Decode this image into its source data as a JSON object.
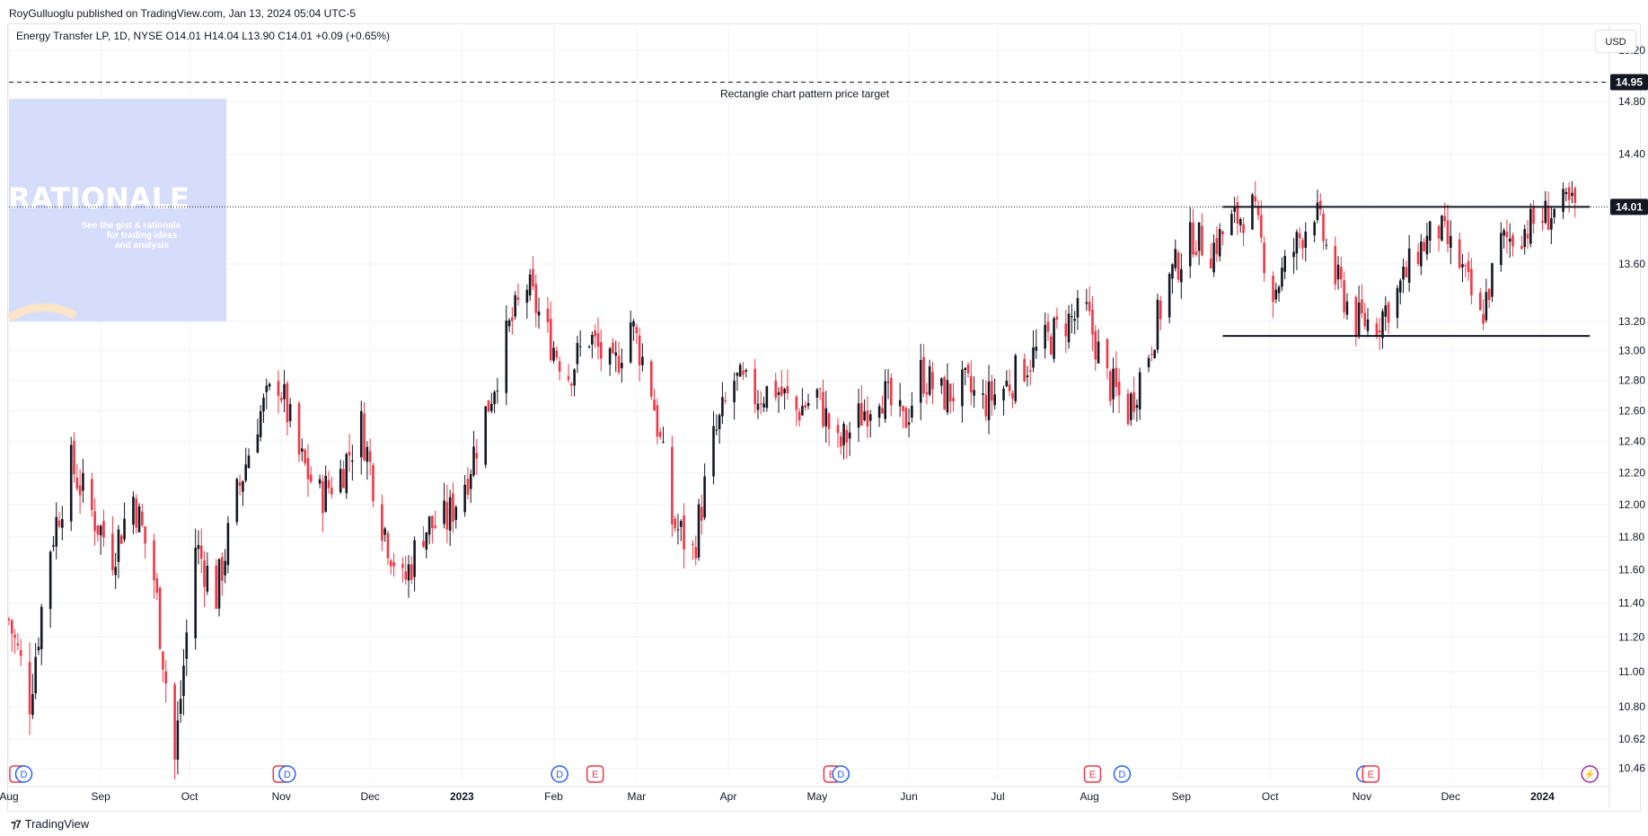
{
  "header": {
    "publish_note": "RoyGulluoglu published on TradingView.com, Jan 13, 2024 05:04 UTC-5",
    "legend": "Energy Transfer LP, 1D, NYSE  O14.01  H14.04  L13.90  C14.01  +0.09 (+0.65%)",
    "currency": "USD"
  },
  "footer": {
    "brand": "TradingView"
  },
  "overlay": {
    "title": "RATIONALE",
    "subtitle_lines": [
      "See the gist & rationale",
      "for trading ideas",
      "and analysis"
    ],
    "bg_color": "#d6ddfa"
  },
  "colors": {
    "up": "#131722",
    "down": "#f23645",
    "grid": "#f0f3fa",
    "price_tag": "#131722"
  },
  "chart_data": {
    "type": "candlestick",
    "symbol": "Energy Transfer LP",
    "interval": "1D",
    "exchange": "NYSE",
    "ohlc_last": {
      "open": 14.01,
      "high": 14.04,
      "low": 13.9,
      "close": 14.01,
      "change": 0.09,
      "change_pct": 0.65
    },
    "y_axis": {
      "ticks": [
        10.46,
        10.62,
        10.8,
        11.0,
        11.2,
        11.4,
        11.6,
        11.8,
        12.0,
        12.2,
        12.4,
        12.6,
        12.8,
        13.0,
        13.2,
        13.6,
        14.4,
        14.8,
        15.2
      ],
      "tick_labels": [
        "10.46",
        "10.62",
        "10.80",
        "11.00",
        "11.20",
        "11.40",
        "11.60",
        "11.80",
        "12.00",
        "12.20",
        "12.40",
        "12.60",
        "12.80",
        "13.00",
        "13.20",
        "13.60",
        "14.40",
        "14.80",
        "15.20"
      ],
      "scale": "log",
      "range": [
        10.4,
        15.4
      ]
    },
    "x_axis": {
      "labels": [
        "Aug",
        "Sep",
        "Oct",
        "Nov",
        "Dec",
        "2023",
        "Feb",
        "Mar",
        "Apr",
        "May",
        "Jun",
        "Jul",
        "Aug",
        "Sep",
        "Oct",
        "Nov",
        "Dec",
        "2024"
      ],
      "bold_labels": [
        "2023",
        "2024"
      ],
      "range": [
        "2022-08-01",
        "2024-01-23"
      ]
    },
    "price_labels": [
      {
        "value": 14.95,
        "text": "14.95"
      },
      {
        "value": 14.01,
        "text": "14.01"
      }
    ],
    "current_price": 14.01,
    "lines": [
      {
        "kind": "dashed",
        "value": 14.95,
        "label": "Rectangle chart pattern price target"
      },
      {
        "kind": "solid",
        "value": 14.01,
        "from": "2023-09-15",
        "to": "2024-01-17"
      },
      {
        "kind": "solid",
        "value": 13.1,
        "from": "2023-09-15",
        "to": "2024-01-17"
      }
    ],
    "closes": [
      {
        "d": "2022-08-01",
        "c": 11.3
      },
      {
        "d": "2022-08-08",
        "c": 10.85
      },
      {
        "d": "2022-08-15",
        "c": 11.75
      },
      {
        "d": "2022-08-22",
        "c": 12.25
      },
      {
        "d": "2022-08-29",
        "c": 11.95
      },
      {
        "d": "2022-09-05",
        "c": 11.7
      },
      {
        "d": "2022-09-12",
        "c": 12.05
      },
      {
        "d": "2022-09-19",
        "c": 11.55
      },
      {
        "d": "2022-09-26",
        "c": 10.5
      },
      {
        "d": "2022-10-03",
        "c": 11.75
      },
      {
        "d": "2022-10-10",
        "c": 11.45
      },
      {
        "d": "2022-10-17",
        "c": 12.05
      },
      {
        "d": "2022-10-24",
        "c": 12.55
      },
      {
        "d": "2022-10-31",
        "c": 12.8
      },
      {
        "d": "2022-11-07",
        "c": 12.3
      },
      {
        "d": "2022-11-14",
        "c": 12.05
      },
      {
        "d": "2022-11-21",
        "c": 12.2
      },
      {
        "d": "2022-11-28",
        "c": 12.5
      },
      {
        "d": "2022-12-05",
        "c": 11.9
      },
      {
        "d": "2022-12-12",
        "c": 11.5
      },
      {
        "d": "2022-12-19",
        "c": 11.85
      },
      {
        "d": "2022-12-27",
        "c": 11.9
      },
      {
        "d": "2023-01-03",
        "c": 12.2
      },
      {
        "d": "2023-01-10",
        "c": 12.65
      },
      {
        "d": "2023-01-17",
        "c": 13.15
      },
      {
        "d": "2023-01-23",
        "c": 13.45
      },
      {
        "d": "2023-01-30",
        "c": 13.1
      },
      {
        "d": "2023-02-06",
        "c": 12.85
      },
      {
        "d": "2023-02-13",
        "c": 13.1
      },
      {
        "d": "2023-02-21",
        "c": 12.85
      },
      {
        "d": "2023-02-27",
        "c": 13.2
      },
      {
        "d": "2023-03-06",
        "c": 12.75
      },
      {
        "d": "2023-03-13",
        "c": 11.9
      },
      {
        "d": "2023-03-20",
        "c": 11.7
      },
      {
        "d": "2023-03-27",
        "c": 12.4
      },
      {
        "d": "2023-04-03",
        "c": 12.8
      },
      {
        "d": "2023-04-10",
        "c": 12.7
      },
      {
        "d": "2023-04-17",
        "c": 12.75
      },
      {
        "d": "2023-04-24",
        "c": 12.6
      },
      {
        "d": "2023-05-01",
        "c": 12.7
      },
      {
        "d": "2023-05-08",
        "c": 12.35
      },
      {
        "d": "2023-05-15",
        "c": 12.55
      },
      {
        "d": "2023-05-22",
        "c": 12.75
      },
      {
        "d": "2023-05-30",
        "c": 12.5
      },
      {
        "d": "2023-06-05",
        "c": 12.85
      },
      {
        "d": "2023-06-12",
        "c": 12.7
      },
      {
        "d": "2023-06-20",
        "c": 12.75
      },
      {
        "d": "2023-06-26",
        "c": 12.65
      },
      {
        "d": "2023-07-03",
        "c": 12.75
      },
      {
        "d": "2023-07-10",
        "c": 12.9
      },
      {
        "d": "2023-07-17",
        "c": 13.05
      },
      {
        "d": "2023-07-24",
        "c": 13.2
      },
      {
        "d": "2023-07-31",
        "c": 13.25
      },
      {
        "d": "2023-08-07",
        "c": 12.8
      },
      {
        "d": "2023-08-14",
        "c": 12.6
      },
      {
        "d": "2023-08-21",
        "c": 13.0
      },
      {
        "d": "2023-08-28",
        "c": 13.5
      },
      {
        "d": "2023-09-05",
        "c": 13.8
      },
      {
        "d": "2023-09-11",
        "c": 13.7
      },
      {
        "d": "2023-09-18",
        "c": 13.9
      },
      {
        "d": "2023-09-25",
        "c": 14.0
      },
      {
        "d": "2023-10-02",
        "c": 13.4
      },
      {
        "d": "2023-10-09",
        "c": 13.7
      },
      {
        "d": "2023-10-16",
        "c": 14.0
      },
      {
        "d": "2023-10-23",
        "c": 13.5
      },
      {
        "d": "2023-10-30",
        "c": 13.2
      },
      {
        "d": "2023-11-06",
        "c": 13.2
      },
      {
        "d": "2023-11-13",
        "c": 13.4
      },
      {
        "d": "2023-11-20",
        "c": 13.7
      },
      {
        "d": "2023-11-27",
        "c": 13.85
      },
      {
        "d": "2023-12-04",
        "c": 13.6
      },
      {
        "d": "2023-12-11",
        "c": 13.2
      },
      {
        "d": "2023-12-18",
        "c": 13.75
      },
      {
        "d": "2023-12-26",
        "c": 13.85
      },
      {
        "d": "2024-01-02",
        "c": 13.95
      },
      {
        "d": "2024-01-09",
        "c": 14.01
      }
    ],
    "events": [
      {
        "d": "2022-08-04",
        "type": "E"
      },
      {
        "d": "2022-08-06",
        "type": "D"
      },
      {
        "d": "2022-11-01",
        "type": "E"
      },
      {
        "d": "2022-11-03",
        "type": "D"
      },
      {
        "d": "2023-02-03",
        "type": "D"
      },
      {
        "d": "2023-02-15",
        "type": "E"
      },
      {
        "d": "2023-05-06",
        "type": "E"
      },
      {
        "d": "2023-05-09",
        "type": "D"
      },
      {
        "d": "2023-08-02",
        "type": "E"
      },
      {
        "d": "2023-08-12",
        "type": "D"
      },
      {
        "d": "2023-11-02",
        "type": "D"
      },
      {
        "d": "2023-11-04",
        "type": "E"
      },
      {
        "d": "2024-01-17",
        "type": "S"
      }
    ]
  }
}
